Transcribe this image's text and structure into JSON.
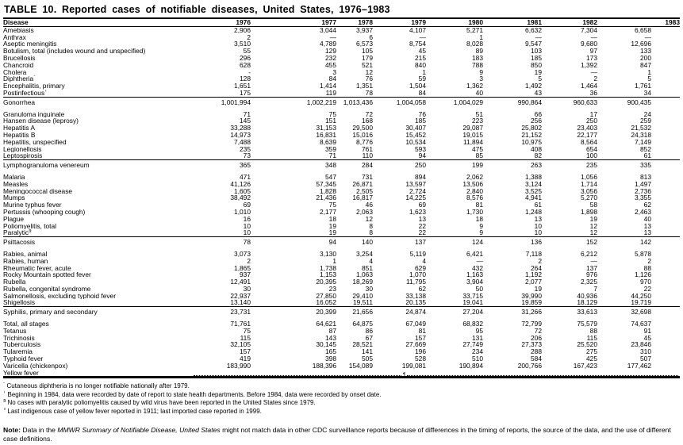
{
  "title": "TABLE 10. Reported cases of notifiable diseases, United States, 1976–1983",
  "table": {
    "columns": [
      "Disease",
      "1976",
      "1977",
      "1978",
      "1979",
      "1980",
      "1981",
      "1982",
      "1983"
    ],
    "sections": [
      {
        "rows": [
          {
            "label": "Amebiasis",
            "values": [
              "2,906",
              "3,044",
              "3,937",
              "4,107",
              "5,271",
              "6,632",
              "7,304",
              "6,658"
            ]
          },
          {
            "label": "Anthrax",
            "values": [
              "2",
              "—",
              "6",
              "—",
              "1",
              "—",
              "—",
              "—"
            ]
          },
          {
            "label": "Aseptic meningitis",
            "values": [
              "3,510",
              "4,789",
              "6,573",
              "8,754",
              "8,028",
              "9,547",
              "9,680",
              "12,696"
            ]
          },
          {
            "label": "Botulism, total (includes wound and unspecified)",
            "values": [
              "55",
              "129",
              "105",
              "45",
              "89",
              "103",
              "97",
              "133"
            ]
          },
          {
            "label": "Brucellosis",
            "values": [
              "296",
              "232",
              "179",
              "215",
              "183",
              "185",
              "173",
              "200"
            ]
          },
          {
            "label": "Chancroid",
            "values": [
              "628",
              "455",
              "521",
              "840",
              "788",
              "850",
              "1,392",
              "847"
            ]
          },
          {
            "label": "Cholera",
            "values": [
              "-",
              "3",
              "12",
              "1",
              "9",
              "19",
              "—",
              "1"
            ]
          },
          {
            "label": "Diphtheria",
            "sup": "*",
            "values": [
              "128",
              "84",
              "76",
              "59",
              "3",
              "5",
              "2",
              "5"
            ]
          },
          {
            "label": "Encephalitis, primary",
            "values": [
              "1,651",
              "1,414",
              "1,351",
              "1,504",
              "1,362",
              "1,492",
              "1,464",
              "1,761"
            ]
          },
          {
            "label": "Postinfectious",
            "sup": "†",
            "indent": true,
            "values": [
              "175",
              "119",
              "78",
              "84",
              "40",
              "43",
              "36",
              "34"
            ]
          }
        ]
      },
      {
        "rows": [
          {
            "label": "Gonorrhea",
            "values": [
              "1,001,994",
              "1,002,219",
              "1,013,436",
              "1,004,058",
              "1,004,029",
              "990,864",
              "960,633",
              "900,435"
            ]
          },
          {
            "label": "Granuloma inguinale",
            "gap": true,
            "values": [
              "71",
              "75",
              "72",
              "76",
              "51",
              "66",
              "17",
              "24"
            ]
          },
          {
            "label": "Hansen disease (leprosy)",
            "values": [
              "145",
              "151",
              "168",
              "185",
              "223",
              "256",
              "250",
              "259"
            ]
          },
          {
            "label": "Hepatitis A",
            "values": [
              "33,288",
              "31,153",
              "29,500",
              "30,407",
              "29,087",
              "25,802",
              "23,403",
              "21,532"
            ]
          },
          {
            "label": "Hepatitis B",
            "values": [
              "14,973",
              "16,831",
              "15,016",
              "15,452",
              "19,015",
              "21,152",
              "22,177",
              "24,318"
            ]
          },
          {
            "label": "Hepatitis, unspecified",
            "values": [
              "7,488",
              "8,639",
              "8,776",
              "10,534",
              "11,894",
              "10,975",
              "8,564",
              "7,149"
            ]
          },
          {
            "label": "Legionellosis",
            "values": [
              "235",
              "359",
              "761",
              "593",
              "475",
              "408",
              "654",
              "852"
            ]
          },
          {
            "label": "Leptospirosis",
            "values": [
              "73",
              "71",
              "110",
              "94",
              "85",
              "82",
              "100",
              "61"
            ]
          }
        ]
      },
      {
        "rows": [
          {
            "label": "Lymphogranuloma venereum",
            "values": [
              "365",
              "348",
              "284",
              "250",
              "199",
              "263",
              "235",
              "335"
            ]
          },
          {
            "label": "Malaria",
            "gap": true,
            "values": [
              "471",
              "547",
              "731",
              "894",
              "2,062",
              "1,388",
              "1,056",
              "813"
            ]
          },
          {
            "label": "Measles",
            "values": [
              "41,126",
              "57,345",
              "26,871",
              "13,597",
              "13,506",
              "3,124",
              "1,714",
              "1,497"
            ]
          },
          {
            "label": "Meningococcal disease",
            "values": [
              "1,605",
              "1,828",
              "2,505",
              "2,724",
              "2,840",
              "3,525",
              "3,056",
              "2,736"
            ]
          },
          {
            "label": "Mumps",
            "values": [
              "38,492",
              "21,436",
              "16,817",
              "14,225",
              "8,576",
              "4,941",
              "5,270",
              "3,355"
            ]
          },
          {
            "label": "Murine typhus fever",
            "values": [
              "69",
              "75",
              "46",
              "69",
              "81",
              "61",
              "58",
              "62"
            ]
          },
          {
            "label": "Pertussis (whooping cough)",
            "values": [
              "1,010",
              "2,177",
              "2,063",
              "1,623",
              "1,730",
              "1,248",
              "1,898",
              "2,463"
            ]
          },
          {
            "label": "Plague",
            "values": [
              "16",
              "18",
              "12",
              "13",
              "18",
              "13",
              "19",
              "40"
            ]
          },
          {
            "label": "Poliomyelitis, total",
            "values": [
              "10",
              "19",
              "8",
              "22",
              "9",
              "10",
              "12",
              "13"
            ]
          },
          {
            "label": "Paralytic",
            "sup": "§",
            "indent": true,
            "values": [
              "10",
              "19",
              "8",
              "22",
              "9",
              "10",
              "12",
              "13"
            ]
          }
        ]
      },
      {
        "rows": [
          {
            "label": "Psittacosis",
            "values": [
              "78",
              "94",
              "140",
              "137",
              "124",
              "136",
              "152",
              "142"
            ]
          },
          {
            "label": "Rabies, animal",
            "gap": true,
            "values": [
              "3,073",
              "3,130",
              "3,254",
              "5,119",
              "6,421",
              "7,118",
              "6,212",
              "5,878"
            ]
          },
          {
            "label": "Rabies, human",
            "values": [
              "2",
              "1",
              "4",
              "4",
              "—",
              "2",
              "—",
              "2"
            ]
          },
          {
            "label": "Rheumatic fever, acute",
            "values": [
              "1,865",
              "1,738",
              "851",
              "629",
              "432",
              "264",
              "137",
              "88"
            ]
          },
          {
            "label": "Rocky Mountain spotted fever",
            "values": [
              "937",
              "1,153",
              "1,063",
              "1,070",
              "1,163",
              "1,192",
              "976",
              "1,126"
            ]
          },
          {
            "label": "Rubella",
            "values": [
              "12,491",
              "20,395",
              "18,269",
              "11,795",
              "3,904",
              "2,077",
              "2,325",
              "970"
            ]
          },
          {
            "label": "Rubella, congenital syndrome",
            "values": [
              "30",
              "23",
              "30",
              "62",
              "50",
              "19",
              "7",
              "22"
            ]
          },
          {
            "label": "Salmonellosis, excluding typhoid fever",
            "values": [
              "22,937",
              "27,850",
              "29,410",
              "33,138",
              "33,715",
              "39,990",
              "40,936",
              "44,250"
            ]
          },
          {
            "label": "Shigellosis",
            "values": [
              "13,140",
              "16,052",
              "19,511",
              "20,135",
              "19,041",
              "19,859",
              "18,129",
              "19,719"
            ]
          }
        ]
      },
      {
        "rows": [
          {
            "label": "Syphilis, primary and secondary",
            "values": [
              "23,731",
              "20,399",
              "21,656",
              "24,874",
              "27,204",
              "31,266",
              "33,613",
              "32,698"
            ]
          },
          {
            "label": "Total, all stages",
            "gap": true,
            "indent": true,
            "values": [
              "71,761",
              "64,621",
              "64,875",
              "67,049",
              "68,832",
              "72,799",
              "75,579",
              "74,637"
            ]
          },
          {
            "label": "Tetanus",
            "values": [
              "75",
              "87",
              "86",
              "81",
              "95",
              "72",
              "88",
              "91"
            ]
          },
          {
            "label": "Trichinosis",
            "values": [
              "115",
              "143",
              "67",
              "157",
              "131",
              "206",
              "115",
              "45"
            ]
          },
          {
            "label": "Tuberculosis",
            "values": [
              "32,105",
              "30,145",
              "28,521",
              "27,669",
              "27,749",
              "27,373",
              "25,520",
              "23,846"
            ]
          },
          {
            "label": "Tularemia",
            "values": [
              "157",
              "165",
              "141",
              "196",
              "234",
              "288",
              "275",
              "310"
            ]
          },
          {
            "label": "Typhoid fever",
            "values": [
              "419",
              "398",
              "505",
              "528",
              "510",
              "584",
              "425",
              "507"
            ]
          },
          {
            "label": "Varicella (chickenpox)",
            "values": [
              "183,990",
              "188,396",
              "154,089",
              "199,081",
              "190,894",
              "200,766",
              "167,423",
              "177,462"
            ]
          },
          {
            "label": "Yellow fever",
            "dotted": true,
            "mark": "¶"
          }
        ]
      }
    ]
  },
  "footnotes": [
    {
      "sym": "*",
      "text": "Cutaneous diphtheria is no longer notifiable nationally after 1979."
    },
    {
      "sym": "†",
      "text": "Beginning in 1984, data were recorded by date of report to state health departments. Before 1984, data were recorded by onset date."
    },
    {
      "sym": "§",
      "text": "No cases with paralytic poliomyelitis caused by wild virus have been reported in the United States since 1979."
    },
    {
      "sym": "¶",
      "text": "Last indigenous case of yellow fever reported in 1911; last imported case reported in 1999."
    }
  ],
  "note": {
    "label": "Note:",
    "pre": " Data in the ",
    "italic": "MMWR Summary of Notifiable Disease, United States",
    "post": " might not match data in other CDC surveillance reports because of differences in the timing of reports, the source of the data, and the use of different case definitions."
  }
}
